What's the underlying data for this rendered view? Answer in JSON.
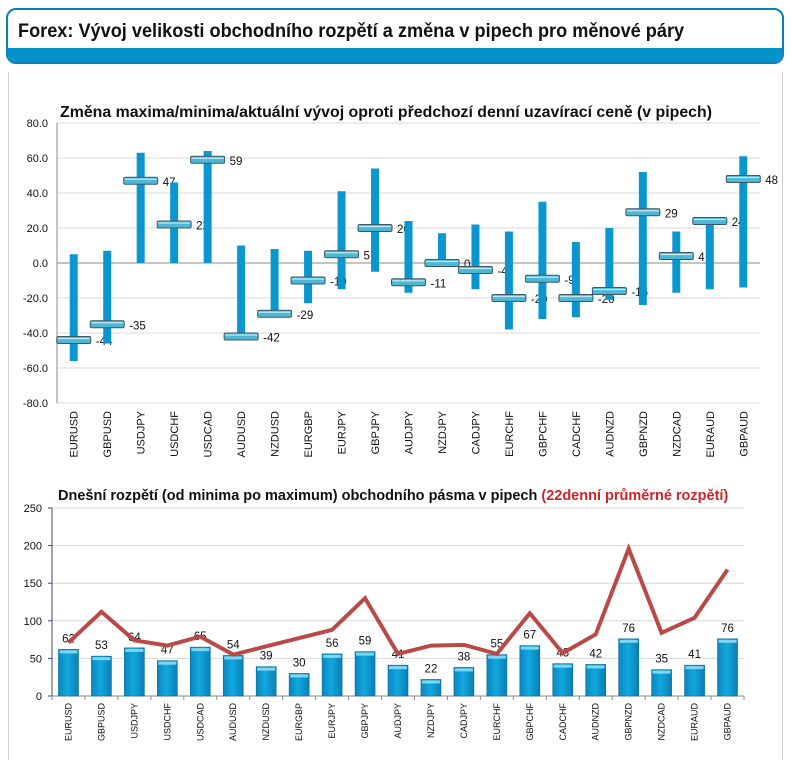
{
  "header": {
    "title": "Forex: Vývoj velikosti obchodního rozpětí a změna v pipech pro měnové páry",
    "accent_color": "#0392c9"
  },
  "chart_data": [
    {
      "type": "range",
      "title": "Změna maxima/minima/aktuální vývoj oproti předchozí denní uzavírací ceně (v pipech)",
      "xlabel": "",
      "ylabel": "",
      "ylim": [
        -80,
        80
      ],
      "yticks": [
        "80.0",
        "60.0",
        "40.0",
        "20.0",
        "0.0",
        "-20.0",
        "-40.0",
        "-60.0",
        "-80.0"
      ],
      "ytick_values": [
        80,
        60,
        40,
        20,
        0,
        -20,
        -40,
        -60,
        -80
      ],
      "grid": true,
      "categories": [
        "EURUSD",
        "GBPUSD",
        "USDJPY",
        "USDCHF",
        "USDCAD",
        "AUDUSD",
        "NZDUSD",
        "EURGBP",
        "EURJPY",
        "GBPJPY",
        "AUDJPY",
        "NZDJPY",
        "CADJPY",
        "EURCHF",
        "GBPCHF",
        "CADCHF",
        "AUDNZD",
        "GBPNZD",
        "NZDCAD",
        "EURAUD",
        "GBPAUD"
      ],
      "series": [
        {
          "name": "max",
          "values": [
            5,
            7,
            63,
            46,
            64,
            10,
            8,
            7,
            41,
            54,
            24,
            17,
            22,
            18,
            35,
            12,
            20,
            52,
            18,
            25,
            61
          ]
        },
        {
          "name": "min",
          "values": [
            -56,
            -46,
            0,
            0,
            0,
            -44,
            -29,
            -23,
            -15,
            -5,
            -17,
            -2,
            -15,
            -38,
            -32,
            -31,
            -21,
            -24,
            -17,
            -15,
            -14
          ]
        },
        {
          "name": "current",
          "values": [
            -44,
            -35,
            47,
            22,
            59,
            -42,
            -29,
            -10,
            5,
            20,
            -11,
            0,
            -4,
            -20,
            -9,
            -20,
            -16,
            29,
            4,
            24,
            48
          ]
        }
      ],
      "data_labels": [
        "-44",
        "-35",
        "47",
        "22",
        "59",
        "-42",
        "-29",
        "-10",
        "5",
        "20",
        "-11",
        "0",
        "-4",
        "-20",
        "-9",
        "-20",
        "-16",
        "29",
        "4",
        "24",
        "48"
      ],
      "bar_color": "#0a97d0"
    },
    {
      "type": "bar+line",
      "title": "Dnešní rozpětí (od minima po maximum) obchodního pásma v pipech",
      "title_highlight": "(22denní průměrné rozpětí)",
      "title_highlight_color": "#d2232a",
      "xlabel": "",
      "ylabel": "",
      "ylim": [
        0,
        250
      ],
      "yticks": [
        "250",
        "200",
        "150",
        "100",
        "50",
        "0"
      ],
      "ytick_values": [
        250,
        200,
        150,
        100,
        50,
        0
      ],
      "grid": true,
      "categories": [
        "EURUSD",
        "GBPUSD",
        "USDJPY",
        "USDCHF",
        "USDCAD",
        "AUDUSD",
        "NZDUSD",
        "EURGBP",
        "EURJPY",
        "GBPJPY",
        "AUDJPY",
        "NZDJPY",
        "CADJPY",
        "EURCHF",
        "GBPCHF",
        "CADCHF",
        "AUDNZD",
        "GBPNZD",
        "NZDCAD",
        "EURAUD",
        "GBPAUD"
      ],
      "series": [
        {
          "name": "Dnešní rozpětí",
          "type": "bar",
          "color": "#0aa0d6",
          "values": [
            62,
            53,
            64,
            47,
            65,
            54,
            39,
            30,
            56,
            59,
            41,
            22,
            38,
            55,
            67,
            43,
            42,
            76,
            35,
            41,
            76
          ]
        },
        {
          "name": "22denní průměrné rozpětí",
          "type": "line",
          "color": "#b94a48",
          "values": [
            71,
            112,
            74,
            67,
            79,
            55,
            66,
            77,
            88,
            130,
            56,
            67,
            68,
            56,
            110,
            57,
            82,
            196,
            84,
            104,
            168
          ]
        }
      ],
      "data_labels": [
        "62",
        "53",
        "64",
        "47",
        "65",
        "54",
        "39",
        "30",
        "56",
        "59",
        "41",
        "22",
        "38",
        "55",
        "67",
        "43",
        "42",
        "76",
        "35",
        "41",
        "76"
      ]
    }
  ]
}
